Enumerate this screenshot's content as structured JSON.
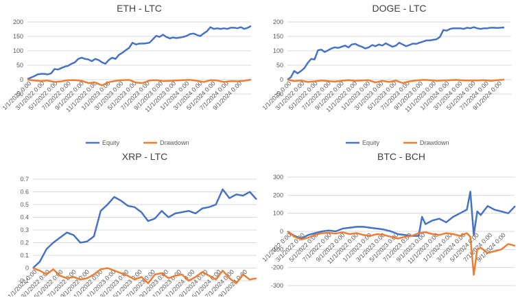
{
  "legend": {
    "equity": "Equity",
    "drawdown": "Drawdown"
  },
  "colors": {
    "equity": "#4472C4",
    "drawdown": "#ED7D31",
    "grid": "#d9d9d9",
    "text": "#595959",
    "title": "#404040"
  },
  "date_ticks": [
    "1/1/2022 0:00",
    "3/1/2022 0:00",
    "5/1/2022 0:00",
    "7/1/2022 0:00",
    "9/1/2022 0:00",
    "11/1/2022 0:00",
    "1/1/2023 0:00",
    "3/1/2023 0:00",
    "5/1/2023 0:00",
    "7/1/2023 0:00",
    "9/1/2023 0:00",
    "11/1/2023 0:00",
    "1/1/2024 0:00",
    "3/1/2024 0:00",
    "5/1/2024 0:00",
    "7/1/2024 0:00",
    "9/1/2024 0:00"
  ],
  "chart_data": [
    {
      "type": "line",
      "title": "ETH - LTC",
      "xlabel": "",
      "ylabel": "",
      "ylim": [
        -50,
        200
      ],
      "yticks": [
        200,
        150,
        100,
        50,
        0,
        -50
      ],
      "ytick_labels": [
        "200",
        "150",
        "100",
        "50",
        "0",
        "-50"
      ],
      "xlim": [
        0,
        33
      ],
      "legend_position": "bottom",
      "series": [
        {
          "name": "Equity",
          "x": [
            0,
            1,
            1.5,
            2,
            2.5,
            3,
            3.5,
            4,
            4.5,
            5,
            5.5,
            6,
            6.5,
            7,
            7.5,
            8,
            8.5,
            9,
            9.5,
            10,
            10.5,
            11,
            11.5,
            12,
            12.5,
            13,
            13.5,
            14,
            14.5,
            15,
            15.5,
            16,
            16.5,
            17,
            17.5,
            18,
            18.5,
            19,
            19.5,
            20,
            20.5,
            21,
            21.5,
            22,
            22.5,
            23,
            23.5,
            24,
            24.5,
            25,
            25.5,
            26,
            26.5,
            27,
            27.5,
            28,
            28.5,
            29,
            29.5,
            30,
            30.5,
            31,
            31.5,
            32,
            32.5,
            33
          ],
          "values": [
            2,
            12,
            18,
            20,
            20,
            18,
            22,
            37,
            35,
            40,
            45,
            48,
            55,
            60,
            72,
            76,
            72,
            70,
            64,
            72,
            68,
            60,
            55,
            68,
            76,
            72,
            86,
            93,
            102,
            110,
            128,
            122,
            125,
            125,
            126,
            128,
            140,
            152,
            148,
            156,
            148,
            143,
            146,
            144,
            146,
            148,
            152,
            158,
            160,
            155,
            151,
            160,
            168,
            182,
            176,
            178,
            176,
            178,
            176,
            180,
            180,
            178,
            182,
            176,
            180,
            186
          ]
        },
        {
          "name": "Drawdown",
          "x": [
            0,
            1,
            2,
            3,
            4,
            5,
            6,
            7,
            8,
            9,
            10,
            11,
            12,
            13,
            14,
            15,
            16,
            17,
            18,
            19,
            20,
            21,
            22,
            23,
            24,
            25,
            26,
            27,
            28,
            29,
            30,
            31,
            32,
            33
          ],
          "values": [
            0,
            -3,
            -5,
            -3,
            -8,
            -6,
            -2,
            -2,
            -4,
            -12,
            -10,
            -20,
            -9,
            -4,
            -2,
            -1,
            -10,
            -12,
            -3,
            -2,
            -5,
            -4,
            -3,
            -2,
            -1,
            -4,
            -8,
            -2,
            -3,
            -8,
            -5,
            -6,
            -4,
            0
          ]
        }
      ]
    },
    {
      "type": "line",
      "title": "DOGE - LTC",
      "xlabel": "",
      "ylabel": "",
      "ylim": [
        -50,
        200
      ],
      "yticks": [
        200,
        150,
        100,
        50,
        0,
        -50
      ],
      "ytick_labels": [
        "200",
        "150",
        "100",
        "50",
        "0",
        "-50"
      ],
      "xlim": [
        0,
        33
      ],
      "legend_position": "bottom",
      "series": [
        {
          "name": "Equity",
          "x": [
            0,
            0.5,
            1,
            1.5,
            2,
            2.5,
            3,
            3.5,
            4,
            4.5,
            5,
            5.5,
            6,
            6.5,
            7,
            7.5,
            8,
            8.5,
            9,
            9.5,
            10,
            10.5,
            11,
            11.5,
            12,
            12.5,
            13,
            13.5,
            14,
            14.5,
            15,
            15.5,
            16,
            16.5,
            17,
            17.5,
            18,
            18.5,
            19,
            19.5,
            20,
            20.5,
            21,
            21.5,
            22,
            22.5,
            23,
            23.5,
            24,
            24.5,
            25,
            25.5,
            26,
            26.5,
            27,
            27.5,
            28,
            28.5,
            29,
            29.5,
            30,
            30.5,
            31,
            31.5,
            32
          ],
          "values": [
            0,
            8,
            30,
            22,
            30,
            40,
            58,
            72,
            70,
            102,
            104,
            96,
            102,
            108,
            112,
            110,
            114,
            118,
            112,
            122,
            124,
            118,
            114,
            108,
            112,
            120,
            116,
            122,
            118,
            126,
            120,
            114,
            118,
            128,
            122,
            116,
            120,
            125,
            124,
            128,
            132,
            136,
            136,
            138,
            140,
            148,
            172,
            170,
            176,
            178,
            178,
            178,
            176,
            180,
            178,
            182,
            178,
            176,
            178,
            178,
            180,
            180,
            179,
            180,
            181
          ]
        },
        {
          "name": "Drawdown",
          "x": [
            0,
            1,
            2,
            3,
            4,
            5,
            6,
            7,
            8,
            9,
            10,
            11,
            12,
            13,
            14,
            15,
            16,
            17,
            18,
            19,
            20,
            21,
            22,
            23,
            24,
            25,
            26,
            27,
            28,
            29,
            30,
            31,
            32
          ],
          "values": [
            0,
            -5,
            -3,
            -8,
            -6,
            -3,
            -5,
            -7,
            -4,
            -2,
            -4,
            -3,
            -2,
            -10,
            -4,
            -8,
            -3,
            -12,
            -6,
            -3,
            -1,
            -2,
            -4,
            -3,
            -2,
            -1,
            -3,
            -3,
            -3,
            -2,
            -4,
            -2,
            0
          ]
        }
      ]
    },
    {
      "type": "line",
      "title": "XRP - LTC",
      "xlabel": "",
      "ylabel": "",
      "ylim": [
        -0.1,
        0.7
      ],
      "yticks": [
        0.7,
        0.6,
        0.5,
        0.4,
        0.3,
        0.2,
        0.1,
        0,
        -0.1
      ],
      "ytick_labels": [
        "0.7",
        "0.6",
        "0.5",
        "0.4",
        "0.3",
        "0.2",
        "0.1",
        "0",
        "-0.1"
      ],
      "xlim": [
        0,
        33
      ],
      "legend_position": "none",
      "series": [
        {
          "name": "Equity",
          "x": [
            0,
            1,
            2,
            3,
            4,
            5,
            6,
            7,
            8,
            9,
            10,
            11,
            12,
            13,
            14,
            15,
            16,
            17,
            18,
            19,
            20,
            21,
            22,
            23,
            24,
            25,
            26,
            27,
            28,
            29,
            30,
            31,
            32,
            33
          ],
          "values": [
            0,
            0.05,
            0.15,
            0.2,
            0.24,
            0.28,
            0.26,
            0.2,
            0.21,
            0.25,
            0.45,
            0.5,
            0.56,
            0.53,
            0.49,
            0.48,
            0.44,
            0.37,
            0.39,
            0.45,
            0.4,
            0.43,
            0.44,
            0.45,
            0.43,
            0.47,
            0.48,
            0.5,
            0.62,
            0.55,
            0.58,
            0.57,
            0.6,
            0.54
          ]
        },
        {
          "name": "Drawdown",
          "x": [
            0,
            1,
            2,
            3,
            4,
            5,
            6,
            7,
            8,
            9,
            10,
            11,
            12,
            13,
            14,
            15,
            16,
            17,
            18,
            19,
            20,
            21,
            22,
            23,
            24,
            25,
            26,
            27,
            28,
            29,
            30,
            31,
            32,
            33
          ],
          "values": [
            0,
            -0.02,
            -0.05,
            -0.01,
            -0.06,
            -0.08,
            -0.07,
            -0.09,
            -0.08,
            -0.05,
            -0.01,
            0,
            -0.02,
            -0.04,
            -0.06,
            -0.09,
            -0.07,
            -0.12,
            -0.05,
            -0.04,
            -0.08,
            -0.06,
            -0.05,
            -0.1,
            -0.07,
            -0.03,
            -0.06,
            -0.09,
            -0.02,
            -0.08,
            -0.12,
            -0.05,
            -0.09,
            -0.08
          ]
        }
      ]
    },
    {
      "type": "line",
      "title": "BTC - BCH",
      "xlabel": "",
      "ylabel": "",
      "ylim": [
        -300,
        300
      ],
      "yticks": [
        300,
        200,
        100,
        0,
        -100,
        -200,
        -300
      ],
      "ytick_labels": [
        "300",
        "200",
        "100",
        "0",
        "-100",
        "-200",
        "-300"
      ],
      "xlim": [
        0,
        33
      ],
      "legend_position": "none",
      "series": [
        {
          "name": "Equity",
          "x": [
            0,
            1,
            2,
            3,
            4,
            5,
            6,
            7,
            8,
            9,
            10,
            11,
            12,
            13,
            14,
            15,
            16,
            17,
            18,
            19,
            19.5,
            20,
            21,
            22,
            23,
            24,
            25,
            26,
            26.5,
            27,
            27.5,
            28,
            29,
            30,
            31,
            32,
            33
          ],
          "values": [
            0,
            -25,
            -40,
            -20,
            -10,
            0,
            5,
            0,
            15,
            20,
            25,
            25,
            20,
            15,
            10,
            0,
            -15,
            -20,
            -25,
            -25,
            80,
            40,
            60,
            70,
            50,
            80,
            100,
            120,
            220,
            -20,
            110,
            90,
            140,
            120,
            110,
            100,
            140
          ]
        },
        {
          "name": "Drawdown",
          "x": [
            0,
            1,
            2,
            3,
            4,
            5,
            6,
            7,
            8,
            9,
            10,
            11,
            12,
            13,
            14,
            15,
            16,
            17,
            18,
            19,
            20,
            21,
            22,
            23,
            24,
            25,
            26,
            26.5,
            27,
            27.5,
            28,
            29,
            30,
            31,
            32,
            33
          ],
          "values": [
            0,
            -30,
            -45,
            -35,
            -20,
            -10,
            -8,
            -12,
            -5,
            -15,
            -10,
            -20,
            -25,
            -15,
            -20,
            -30,
            -40,
            -30,
            -25,
            -10,
            -5,
            -15,
            -20,
            -10,
            -15,
            -25,
            -10,
            -30,
            -240,
            -100,
            -90,
            -120,
            -110,
            -100,
            -70,
            -80
          ]
        }
      ]
    }
  ]
}
